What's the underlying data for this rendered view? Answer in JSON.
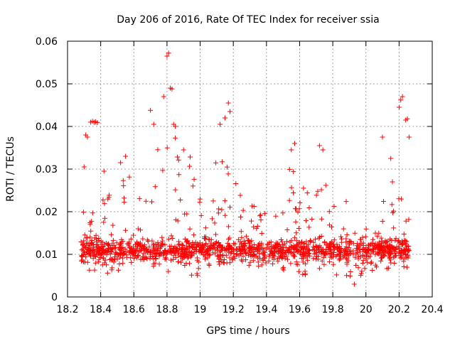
{
  "chart_data": {
    "type": "scatter",
    "title": "Day 206 of 2016, Rate Of TEC Index for receiver ssia",
    "xlabel": "GPS time / hours",
    "ylabel": "ROTI / TECUs",
    "xlim": [
      18.2,
      20.4
    ],
    "ylim": [
      0,
      0.06
    ],
    "x_ticks": [
      18.2,
      18.4,
      18.6,
      18.8,
      19.0,
      19.2,
      19.4,
      19.6,
      19.8,
      20.0,
      20.2,
      20.4
    ],
    "x_tick_labels": [
      "18.2",
      "18.4",
      "18.6",
      "18.8",
      "19",
      "19.2",
      "19.4",
      "19.6",
      "19.8",
      "20",
      "20.2",
      "20.4"
    ],
    "y_ticks": [
      0,
      0.01,
      0.02,
      0.03,
      0.04,
      0.05,
      0.06
    ],
    "y_tick_labels": [
      "0",
      "0.01",
      "0.02",
      "0.03",
      "0.04",
      "0.05",
      "0.06"
    ],
    "grid": true,
    "marker": "+",
    "color": "#ff0000",
    "x_range_of_points": [
      18.28,
      20.26
    ],
    "highlights": [
      {
        "x": 18.3,
        "y": 0.0305
      },
      {
        "x": 18.31,
        "y": 0.038
      },
      {
        "x": 18.32,
        "y": 0.0375
      },
      {
        "x": 18.34,
        "y": 0.041
      },
      {
        "x": 18.35,
        "y": 0.0412
      },
      {
        "x": 18.36,
        "y": 0.041
      },
      {
        "x": 18.37,
        "y": 0.0411
      },
      {
        "x": 18.38,
        "y": 0.0409
      },
      {
        "x": 18.42,
        "y": 0.0295
      },
      {
        "x": 18.52,
        "y": 0.0315
      },
      {
        "x": 18.55,
        "y": 0.033
      },
      {
        "x": 18.7,
        "y": 0.0438
      },
      {
        "x": 18.72,
        "y": 0.0405
      },
      {
        "x": 18.78,
        "y": 0.047
      },
      {
        "x": 18.8,
        "y": 0.0565
      },
      {
        "x": 18.81,
        "y": 0.0572
      },
      {
        "x": 18.82,
        "y": 0.049
      },
      {
        "x": 18.83,
        "y": 0.0488
      },
      {
        "x": 18.84,
        "y": 0.0405
      },
      {
        "x": 18.85,
        "y": 0.04
      },
      {
        "x": 18.9,
        "y": 0.0345
      },
      {
        "x": 19.12,
        "y": 0.0405
      },
      {
        "x": 19.15,
        "y": 0.042
      },
      {
        "x": 19.17,
        "y": 0.0455
      },
      {
        "x": 19.18,
        "y": 0.0435
      },
      {
        "x": 19.55,
        "y": 0.0345
      },
      {
        "x": 19.57,
        "y": 0.036
      },
      {
        "x": 19.72,
        "y": 0.0355
      },
      {
        "x": 19.74,
        "y": 0.0345
      },
      {
        "x": 19.93,
        "y": 0.003
      },
      {
        "x": 20.1,
        "y": 0.0375
      },
      {
        "x": 20.15,
        "y": 0.0325
      },
      {
        "x": 20.16,
        "y": 0.027
      },
      {
        "x": 20.2,
        "y": 0.0445
      },
      {
        "x": 20.21,
        "y": 0.0462
      },
      {
        "x": 20.22,
        "y": 0.047
      },
      {
        "x": 20.24,
        "y": 0.0415
      },
      {
        "x": 20.25,
        "y": 0.0418
      },
      {
        "x": 20.26,
        "y": 0.0375
      }
    ],
    "envelope": [
      {
        "x": 18.28,
        "lo": 0.007,
        "hi": 0.022
      },
      {
        "x": 18.35,
        "lo": 0.006,
        "hi": 0.02
      },
      {
        "x": 18.4,
        "lo": 0.007,
        "hi": 0.022
      },
      {
        "x": 18.45,
        "lo": 0.005,
        "hi": 0.025
      },
      {
        "x": 18.5,
        "lo": 0.006,
        "hi": 0.028
      },
      {
        "x": 18.55,
        "lo": 0.006,
        "hi": 0.03
      },
      {
        "x": 18.6,
        "lo": 0.007,
        "hi": 0.028
      },
      {
        "x": 18.65,
        "lo": 0.008,
        "hi": 0.027
      },
      {
        "x": 18.7,
        "lo": 0.007,
        "hi": 0.032
      },
      {
        "x": 18.75,
        "lo": 0.007,
        "hi": 0.036
      },
      {
        "x": 18.8,
        "lo": 0.006,
        "hi": 0.038
      },
      {
        "x": 18.85,
        "lo": 0.006,
        "hi": 0.038
      },
      {
        "x": 18.9,
        "lo": 0.006,
        "hi": 0.035
      },
      {
        "x": 18.95,
        "lo": 0.005,
        "hi": 0.034
      },
      {
        "x": 19.0,
        "lo": 0.005,
        "hi": 0.033
      },
      {
        "x": 19.05,
        "lo": 0.006,
        "hi": 0.03
      },
      {
        "x": 19.1,
        "lo": 0.007,
        "hi": 0.032
      },
      {
        "x": 19.15,
        "lo": 0.008,
        "hi": 0.035
      },
      {
        "x": 19.2,
        "lo": 0.008,
        "hi": 0.032
      },
      {
        "x": 19.25,
        "lo": 0.008,
        "hi": 0.026
      },
      {
        "x": 19.3,
        "lo": 0.007,
        "hi": 0.024
      },
      {
        "x": 19.35,
        "lo": 0.007,
        "hi": 0.024
      },
      {
        "x": 19.4,
        "lo": 0.006,
        "hi": 0.022
      },
      {
        "x": 19.45,
        "lo": 0.006,
        "hi": 0.026
      },
      {
        "x": 19.5,
        "lo": 0.006,
        "hi": 0.028
      },
      {
        "x": 19.55,
        "lo": 0.006,
        "hi": 0.032
      },
      {
        "x": 19.6,
        "lo": 0.005,
        "hi": 0.028
      },
      {
        "x": 19.65,
        "lo": 0.005,
        "hi": 0.026
      },
      {
        "x": 19.7,
        "lo": 0.005,
        "hi": 0.03
      },
      {
        "x": 19.75,
        "lo": 0.006,
        "hi": 0.032
      },
      {
        "x": 19.8,
        "lo": 0.005,
        "hi": 0.026
      },
      {
        "x": 19.85,
        "lo": 0.005,
        "hi": 0.024
      },
      {
        "x": 19.9,
        "lo": 0.004,
        "hi": 0.022
      },
      {
        "x": 19.95,
        "lo": 0.004,
        "hi": 0.02
      },
      {
        "x": 20.0,
        "lo": 0.006,
        "hi": 0.019
      },
      {
        "x": 20.05,
        "lo": 0.006,
        "hi": 0.018
      },
      {
        "x": 20.1,
        "lo": 0.006,
        "hi": 0.023
      },
      {
        "x": 20.15,
        "lo": 0.006,
        "hi": 0.025
      },
      {
        "x": 20.2,
        "lo": 0.006,
        "hi": 0.028
      },
      {
        "x": 20.26,
        "lo": 0.007,
        "hi": 0.022
      }
    ],
    "dense_band": {
      "center": 0.011,
      "spread": 0.0035
    },
    "generated_point_count": 1400
  }
}
